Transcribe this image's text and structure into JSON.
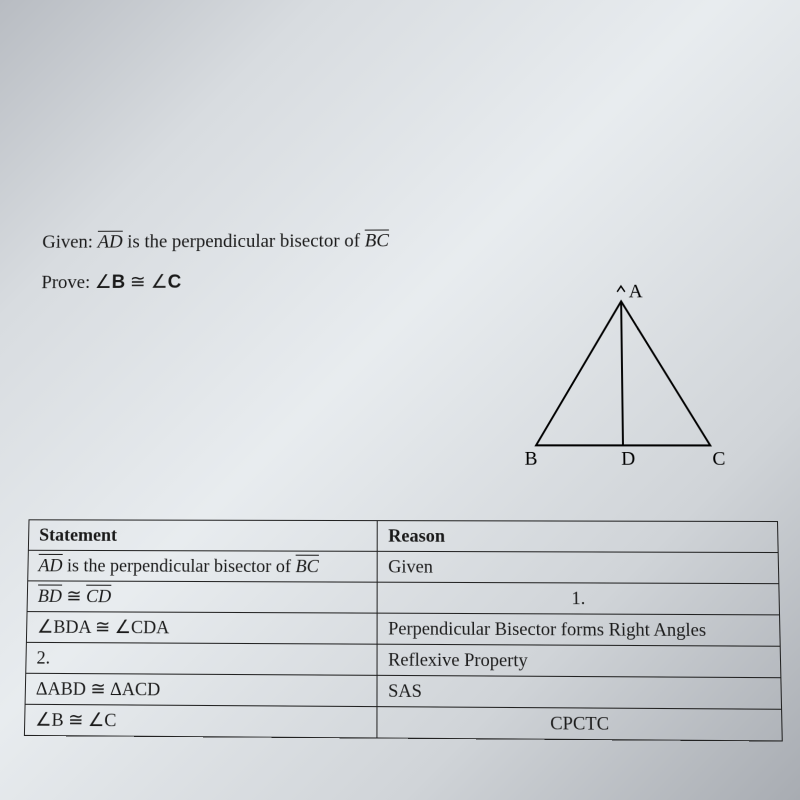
{
  "given": {
    "label": "Given:",
    "seg1": "AD",
    "mid": " is the perpendicular bisector of ",
    "seg2": "BC"
  },
  "prove": {
    "label": "Prove:",
    "angle_prefix": "∠",
    "lhs": "B",
    "congr": " ≅ ",
    "rhs": "C"
  },
  "figure": {
    "labels": {
      "A": "A",
      "B": "B",
      "C": "C",
      "D": "D"
    },
    "stroke": "#000000",
    "stroke_width": 2
  },
  "table": {
    "headers": {
      "statement": "Statement",
      "reason": "Reason"
    },
    "rows": [
      {
        "s_pre": "",
        "s_seg1": "AD",
        "s_mid": " is the perpendicular bisector of ",
        "s_seg2": "BC",
        "s_post": "",
        "r": "Given"
      },
      {
        "s_pre": "",
        "s_seg1": "BD",
        "s_mid": " ≅ ",
        "s_seg2": "CD",
        "s_post": "",
        "r": "1."
      },
      {
        "s_pre": "∠BDA ≅ ∠CDA",
        "s_seg1": "",
        "s_mid": "",
        "s_seg2": "",
        "s_post": "",
        "r": "Perpendicular Bisector forms Right Angles"
      },
      {
        "s_pre": "2.",
        "s_seg1": "",
        "s_mid": "",
        "s_seg2": "",
        "s_post": "",
        "r": "Reflexive Property"
      },
      {
        "s_pre": "ΔABD ≅ ΔACD",
        "s_seg1": "",
        "s_mid": "",
        "s_seg2": "",
        "s_post": "",
        "r": "SAS"
      },
      {
        "s_pre": "∠B ≅ ∠C",
        "s_seg1": "",
        "s_mid": "",
        "s_seg2": "",
        "s_post": "",
        "r": "CPCTC"
      }
    ],
    "reason_center_indices": [
      1,
      5
    ]
  }
}
